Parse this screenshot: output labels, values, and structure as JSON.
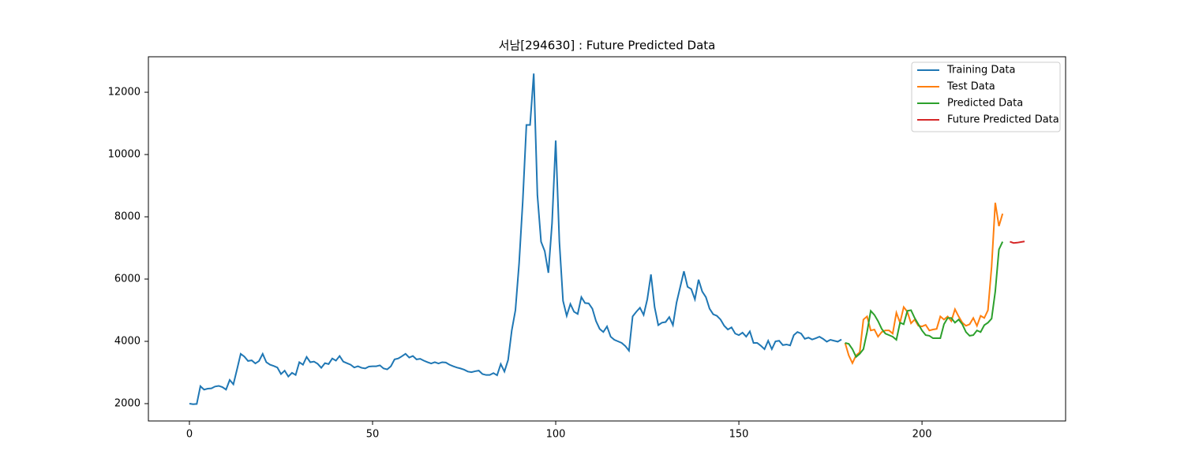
{
  "chart_data": {
    "type": "line",
    "title": "서남[294630] : Future Predicted Data",
    "xlim": [
      -11.2,
      239.2
    ],
    "ylim": [
      1443,
      13140
    ],
    "xticks": [
      0,
      50,
      100,
      150,
      200
    ],
    "yticks": [
      2000,
      4000,
      6000,
      8000,
      10000,
      12000
    ],
    "legend": "upper right",
    "series": [
      {
        "name": "Training Data",
        "color": "#1f77b4",
        "x": [
          0,
          1,
          2,
          3,
          4,
          5,
          6,
          7,
          8,
          9,
          10,
          11,
          12,
          13,
          14,
          15,
          16,
          17,
          18,
          19,
          20,
          21,
          22,
          23,
          24,
          25,
          26,
          27,
          28,
          29,
          30,
          31,
          32,
          33,
          34,
          35,
          36,
          37,
          38,
          39,
          40,
          41,
          42,
          43,
          44,
          45,
          46,
          47,
          48,
          49,
          50,
          51,
          52,
          53,
          54,
          55,
          56,
          57,
          58,
          59,
          60,
          61,
          62,
          63,
          64,
          65,
          66,
          67,
          68,
          69,
          70,
          71,
          72,
          73,
          74,
          75,
          76,
          77,
          78,
          79,
          80,
          81,
          82,
          83,
          84,
          85,
          86,
          87,
          88,
          89,
          90,
          91,
          92,
          93,
          94,
          95,
          96,
          97,
          98,
          99,
          100,
          101,
          102,
          103,
          104,
          105,
          106,
          107,
          108,
          109,
          110,
          111,
          112,
          113,
          114,
          115,
          116,
          117,
          118,
          119,
          120,
          121,
          122,
          123,
          124,
          125,
          126,
          127,
          128,
          129,
          130,
          131,
          132,
          133,
          134,
          135,
          136,
          137,
          138,
          139,
          140,
          141,
          142,
          143,
          144,
          145,
          146,
          147,
          148,
          149,
          150,
          151,
          152,
          153,
          154,
          155,
          156,
          157,
          158,
          159,
          160,
          161,
          162,
          163,
          164,
          165,
          166,
          167,
          168,
          169,
          170,
          171,
          172,
          173,
          174,
          175,
          176,
          177,
          178
        ],
        "values": [
          2000,
          1980,
          1990,
          2560,
          2450,
          2480,
          2490,
          2550,
          2570,
          2530,
          2450,
          2760,
          2620,
          3100,
          3600,
          3510,
          3370,
          3390,
          3290,
          3370,
          3600,
          3330,
          3250,
          3210,
          3160,
          2950,
          3060,
          2870,
          2990,
          2920,
          3330,
          3250,
          3500,
          3330,
          3350,
          3280,
          3150,
          3300,
          3270,
          3450,
          3380,
          3530,
          3350,
          3300,
          3250,
          3160,
          3200,
          3150,
          3130,
          3190,
          3200,
          3200,
          3230,
          3130,
          3100,
          3200,
          3420,
          3450,
          3520,
          3600,
          3480,
          3530,
          3420,
          3440,
          3380,
          3330,
          3290,
          3330,
          3290,
          3330,
          3320,
          3250,
          3200,
          3160,
          3130,
          3090,
          3030,
          3010,
          3040,
          3060,
          2950,
          2920,
          2920,
          2980,
          2910,
          3270,
          3030,
          3400,
          4350,
          5000,
          6500,
          8500,
          10950,
          10950,
          12600,
          8700,
          7200,
          6900,
          6200,
          7800,
          10450,
          7200,
          5300,
          4820,
          5200,
          4950,
          4880,
          5420,
          5230,
          5220,
          5050,
          4650,
          4400,
          4300,
          4480,
          4150,
          4050,
          4000,
          3950,
          3850,
          3700,
          4800,
          4950,
          5080,
          4850,
          5350,
          6150,
          5100,
          4520,
          4600,
          4620,
          4780,
          4520,
          5250,
          5750,
          6250,
          5750,
          5680,
          5350,
          5980,
          5600,
          5420,
          5050,
          4870,
          4820,
          4700,
          4500,
          4380,
          4450,
          4250,
          4200,
          4280,
          4150,
          4320,
          3950,
          3950,
          3860,
          3750,
          4020,
          3750,
          4000,
          4020,
          3880,
          3900,
          3870,
          4200,
          4300,
          4250,
          4080,
          4120,
          4060,
          4100,
          4150,
          4080,
          3990,
          4050,
          4020,
          3990,
          4060
        ]
      },
      {
        "name": "Test Data",
        "color": "#ff7f0e",
        "x": [
          179,
          180,
          181,
          182,
          183,
          184,
          185,
          186,
          187,
          188,
          189,
          190,
          191,
          192,
          193,
          194,
          195,
          196,
          197,
          198,
          199,
          200,
          201,
          202,
          203,
          204,
          205,
          206,
          207,
          208,
          209,
          210,
          211,
          212,
          213,
          214,
          215,
          216,
          217,
          218,
          219,
          220,
          221,
          222
        ],
        "values": [
          3950,
          3550,
          3300,
          3550,
          3650,
          4700,
          4800,
          4350,
          4380,
          4150,
          4300,
          4350,
          4350,
          4250,
          4920,
          4600,
          5100,
          4950,
          4580,
          4700,
          4500,
          4480,
          4530,
          4350,
          4380,
          4400,
          4800,
          4700,
          4800,
          4650,
          5030,
          4800,
          4600,
          4500,
          4550,
          4750,
          4500,
          4820,
          4750,
          5000,
          6400,
          8450,
          7700,
          8100
        ]
      },
      {
        "name": "Predicted Data",
        "color": "#2ca02c",
        "x": [
          179,
          180,
          181,
          182,
          183,
          184,
          185,
          186,
          187,
          188,
          189,
          190,
          191,
          192,
          193,
          194,
          195,
          196,
          197,
          198,
          199,
          200,
          201,
          202,
          203,
          204,
          205,
          206,
          207,
          208,
          209,
          210,
          211,
          212,
          213,
          214,
          215,
          216,
          217,
          218,
          219,
          220,
          221,
          222
        ],
        "values": [
          3950,
          3920,
          3750,
          3500,
          3600,
          3750,
          4300,
          4980,
          4850,
          4650,
          4400,
          4250,
          4200,
          4150,
          4050,
          4600,
          4550,
          4980,
          5000,
          4750,
          4550,
          4350,
          4200,
          4180,
          4100,
          4100,
          4100,
          4550,
          4750,
          4750,
          4600,
          4700,
          4550,
          4300,
          4180,
          4200,
          4350,
          4300,
          4520,
          4600,
          4730,
          5600,
          6950,
          7200
        ]
      },
      {
        "name": "Future Predicted Data",
        "color": "#d62728",
        "x": [
          224,
          225,
          226,
          227,
          228
        ],
        "values": [
          7200,
          7160,
          7170,
          7190,
          7210
        ]
      }
    ]
  }
}
